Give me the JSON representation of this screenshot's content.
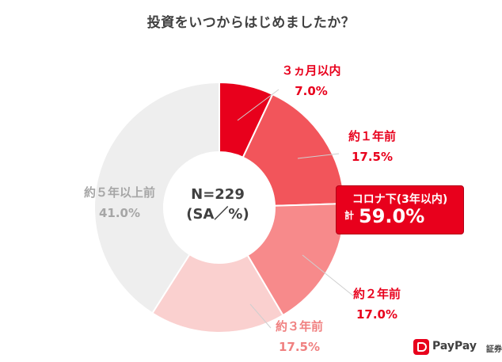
{
  "title": "投資をいつからはじめましたか？",
  "center": {
    "line1": "N=229",
    "line2": "(SA／%)"
  },
  "chart_data": {
    "type": "pie",
    "title": "投資をいつからはじめましたか？",
    "slices": [
      {
        "label": "３ヵ月以内",
        "value": 7.0,
        "value_label": "7.0%",
        "color": "#e8001c",
        "label_color": "#e8001c"
      },
      {
        "label": "約１年前",
        "value": 17.5,
        "value_label": "17.5%",
        "color": "#f2555b",
        "label_color": "#e8001c"
      },
      {
        "label": "約２年前",
        "value": 17.0,
        "value_label": "17.0%",
        "color": "#f78a8b",
        "label_color": "#e8001c"
      },
      {
        "label": "約３年前",
        "value": 17.5,
        "value_label": "17.5%",
        "color": "#fad0cf",
        "label_color": "#f08080"
      },
      {
        "label": "約５年以上前",
        "value": 41.0,
        "value_label": "41.0%",
        "color": "#eeeeee",
        "label_color": "#a6a6a6"
      }
    ]
  },
  "callout": {
    "title": "コロナ下(3年以内)",
    "prefix": "計",
    "value": "59.0%"
  },
  "logo": {
    "text": "PayPay",
    "sub": "証券"
  }
}
